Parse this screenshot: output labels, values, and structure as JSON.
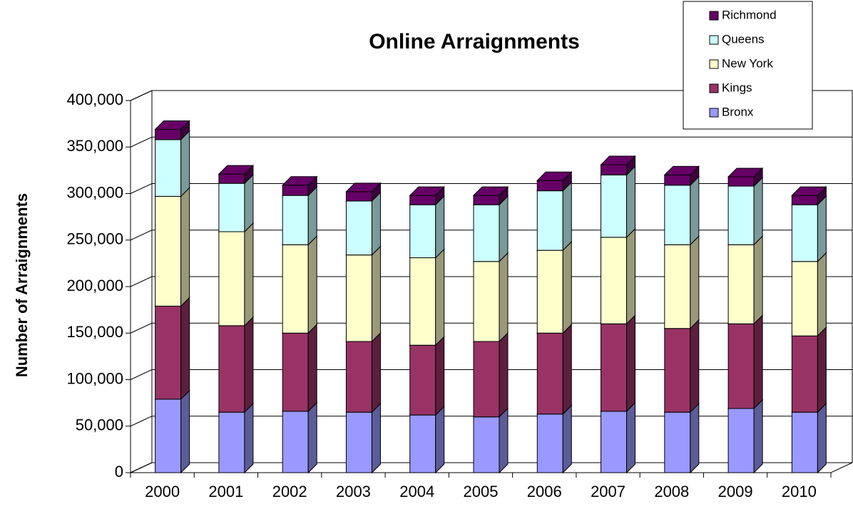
{
  "chart_data": {
    "type": "bar3d_stacked",
    "title": "Online Arraignments",
    "y_label": "Number of Arraignments",
    "categories": [
      "2000",
      "2001",
      "2002",
      "2003",
      "2004",
      "2005",
      "2006",
      "2007",
      "2008",
      "2009",
      "2010"
    ],
    "series": [
      {
        "name": "Bronx",
        "color": "#9999ff",
        "values": [
          79000,
          65000,
          66000,
          65000,
          62000,
          60000,
          63000,
          66000,
          65000,
          69000,
          65000
        ]
      },
      {
        "name": "Kings",
        "color": "#993366",
        "values": [
          100000,
          93000,
          84000,
          76000,
          75000,
          81000,
          87000,
          94000,
          90000,
          91000,
          82000
        ]
      },
      {
        "name": "New York",
        "color": "#ffffcc",
        "values": [
          118000,
          101000,
          95000,
          93000,
          94000,
          86000,
          89000,
          93000,
          90000,
          85000,
          80000
        ]
      },
      {
        "name": "Queens",
        "color": "#ccffff",
        "values": [
          61000,
          52000,
          53000,
          58000,
          57000,
          61000,
          64000,
          67000,
          64000,
          63000,
          61000
        ]
      },
      {
        "name": "Richmond",
        "color": "#660066",
        "values": [
          11000,
          10000,
          11000,
          10000,
          10000,
          10000,
          11000,
          11000,
          11000,
          10000,
          10000
        ]
      }
    ],
    "ylim": [
      0,
      400000
    ],
    "yticks": [
      0,
      {
        "value": 50000,
        "label": "50,000"
      },
      {
        "value": 100000,
        "label": "100,000"
      },
      {
        "value": 150000,
        "label": "150,000"
      },
      {
        "value": 200000,
        "label": "200,000"
      },
      {
        "value": 250000,
        "label": "250,000"
      },
      {
        "value": 300000,
        "label": "300,000"
      },
      {
        "value": 350000,
        "label": "350,000"
      },
      {
        "value": 400000,
        "label": "400,000"
      }
    ],
    "grid": true,
    "legend": "top-right"
  }
}
